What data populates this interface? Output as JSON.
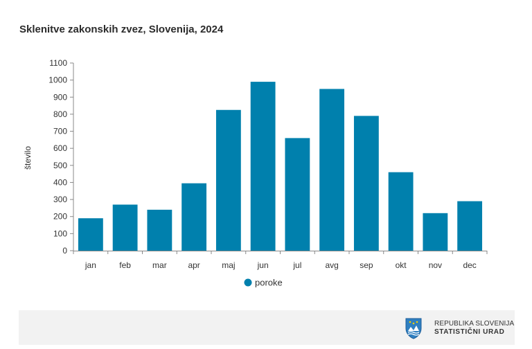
{
  "chart_data": {
    "type": "bar",
    "title": "Sklenitve zakonskih zvez, Slovenija, 2024",
    "ylabel": "število",
    "xlabel": "",
    "categories": [
      "jan",
      "feb",
      "mar",
      "apr",
      "maj",
      "jun",
      "jul",
      "avg",
      "sep",
      "okt",
      "nov",
      "dec"
    ],
    "series": [
      {
        "name": "poroke",
        "color": "#0080ad",
        "values": [
          190,
          270,
          240,
          395,
          825,
          990,
          660,
          948,
          790,
          460,
          220,
          290
        ]
      }
    ],
    "ylim": [
      0,
      1100
    ],
    "yticks": [
      "0",
      "100",
      "200",
      "300",
      "400",
      "500",
      "600",
      "700",
      "800",
      "900",
      "1000",
      "1100"
    ],
    "grid": false,
    "legend_position": "bottom-center"
  },
  "footer": {
    "org_line1": "REPUBLIKA SLOVENIJA",
    "org_line2": "STATISTIČNI URAD",
    "logo_icon": "coat-of-arms-icon",
    "background": "#f2f2f2"
  }
}
